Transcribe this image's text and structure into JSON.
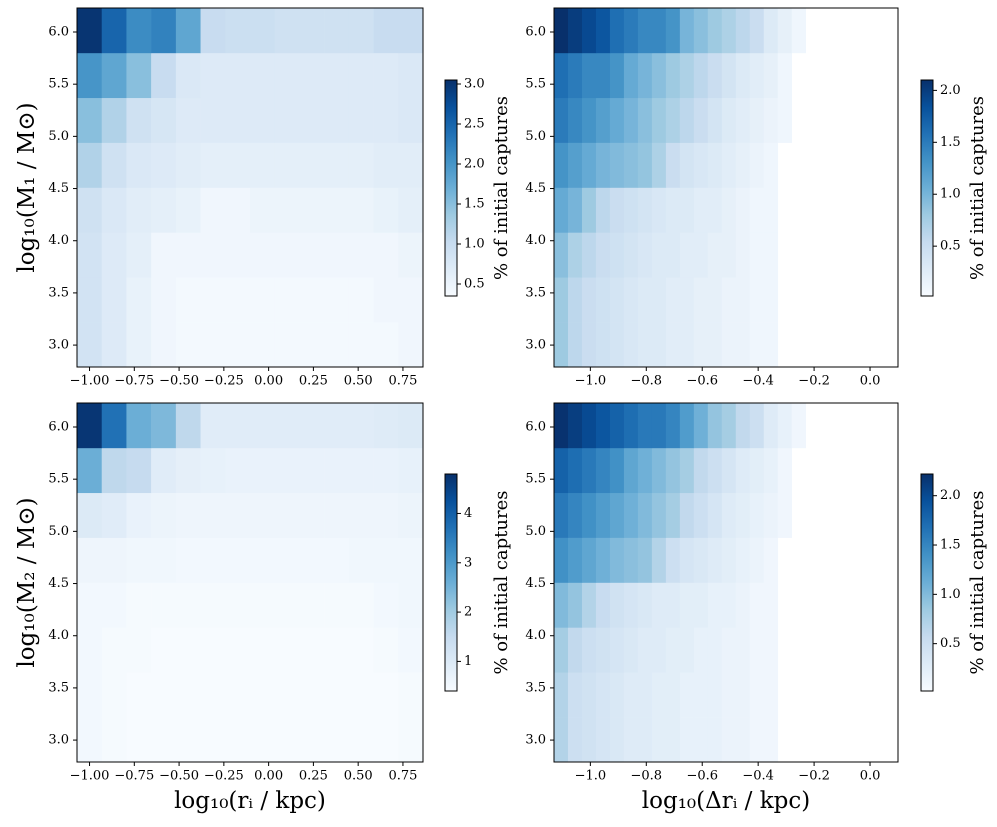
{
  "chart_data": [
    {
      "type": "heatmap",
      "ylabel": "log₁₀(M₁ / M⊙)",
      "xlim": [
        -1.07,
        0.862
      ],
      "ylim": [
        2.79,
        6.23
      ],
      "xticks": [
        {
          "value": -1,
          "label": "−1.00"
        },
        {
          "value": -0.75,
          "label": "−0.75"
        },
        {
          "value": -0.5,
          "label": "−0.50"
        },
        {
          "value": -0.25,
          "label": "−0.25"
        },
        {
          "value": 0,
          "label": "0.00"
        },
        {
          "value": 0.25,
          "label": "0.25"
        },
        {
          "value": 0.5,
          "label": "0.50"
        },
        {
          "value": 0.75,
          "label": "0.75"
        }
      ],
      "yticks": [
        {
          "value": 3,
          "label": "3.0"
        },
        {
          "value": 3.5,
          "label": "3.5"
        },
        {
          "value": 4,
          "label": "4.0"
        },
        {
          "value": 4.5,
          "label": "4.5"
        },
        {
          "value": 5,
          "label": "5.0"
        },
        {
          "value": 5.5,
          "label": "5.5"
        },
        {
          "value": 6,
          "label": "6.0"
        }
      ],
      "x_edges": [
        -1.07,
        -0.932,
        -0.794,
        -0.656,
        -0.518,
        -0.38,
        -0.242,
        -0.104,
        0.034,
        0.172,
        0.31,
        0.448,
        0.586,
        0.724,
        0.862
      ],
      "y_edges": [
        2.79,
        3.22,
        3.65,
        4.08,
        4.51,
        4.94,
        5.37,
        5.8,
        6.23
      ],
      "z": [
        [
          0.85,
          0.7,
          0.55,
          0.45,
          0.4,
          0.4,
          0.4,
          0.4,
          0.4,
          0.4,
          0.4,
          0.4,
          0.4,
          0.45
        ],
        [
          0.85,
          0.7,
          0.55,
          0.45,
          0.4,
          0.4,
          0.4,
          0.4,
          0.4,
          0.4,
          0.4,
          0.4,
          0.45,
          0.45
        ],
        [
          0.85,
          0.7,
          0.6,
          0.45,
          0.45,
          0.45,
          0.45,
          0.45,
          0.45,
          0.45,
          0.45,
          0.45,
          0.45,
          0.5
        ],
        [
          0.9,
          0.75,
          0.65,
          0.6,
          0.55,
          0.45,
          0.45,
          0.5,
          0.5,
          0.5,
          0.5,
          0.5,
          0.55,
          0.6
        ],
        [
          1.2,
          0.9,
          0.75,
          0.7,
          0.65,
          0.6,
          0.6,
          0.6,
          0.6,
          0.6,
          0.6,
          0.6,
          0.65,
          0.65
        ],
        [
          1.5,
          1.2,
          0.9,
          0.8,
          0.7,
          0.7,
          0.7,
          0.7,
          0.7,
          0.7,
          0.7,
          0.7,
          0.7,
          0.75
        ],
        [
          2.0,
          1.8,
          1.5,
          1.0,
          0.75,
          0.7,
          0.7,
          0.7,
          0.7,
          0.7,
          0.7,
          0.7,
          0.7,
          0.75
        ],
        [
          3.0,
          2.5,
          2.1,
          2.2,
          1.8,
          1.0,
          0.95,
          0.95,
          0.9,
          0.9,
          0.9,
          0.9,
          1.0,
          1.0
        ]
      ],
      "colorbar": {
        "label": "% of initial captures",
        "lim": [
          0.35,
          3.05
        ],
        "ticks": [
          {
            "value": 0.5,
            "label": "0.5"
          },
          {
            "value": 1,
            "label": "1.0"
          },
          {
            "value": 1.5,
            "label": "1.5"
          },
          {
            "value": 2,
            "label": "2.0"
          },
          {
            "value": 2.5,
            "label": "2.5"
          },
          {
            "value": 3,
            "label": "3.0"
          }
        ]
      }
    },
    {
      "type": "heatmap",
      "xlim": [
        -1.13,
        0.1
      ],
      "ylim": [
        2.79,
        6.23
      ],
      "xticks": [
        {
          "value": -1,
          "label": "−1.0"
        },
        {
          "value": -0.8,
          "label": "−0.8"
        },
        {
          "value": -0.6,
          "label": "−0.6"
        },
        {
          "value": -0.4,
          "label": "−0.4"
        },
        {
          "value": -0.2,
          "label": "−0.2"
        },
        {
          "value": 0,
          "label": "0.0"
        }
      ],
      "yticks": [
        {
          "value": 3,
          "label": "3.0"
        },
        {
          "value": 3.5,
          "label": "3.5"
        },
        {
          "value": 4,
          "label": "4.0"
        },
        {
          "value": 4.5,
          "label": "4.5"
        },
        {
          "value": 5,
          "label": "5.0"
        },
        {
          "value": 5.5,
          "label": "5.5"
        },
        {
          "value": 6,
          "label": "6.0"
        }
      ],
      "x_edges": [
        -1.13,
        -1.08,
        -1.03,
        -0.98,
        -0.93,
        -0.88,
        -0.83,
        -0.78,
        -0.73,
        -0.68,
        -0.63,
        -0.58,
        -0.53,
        -0.48,
        -0.43,
        -0.38,
        -0.33,
        -0.28,
        -0.23,
        -0.18,
        -0.13,
        -0.08,
        -0.03,
        0.02,
        0.07
      ],
      "y_edges": [
        2.79,
        3.22,
        3.65,
        4.08,
        4.51,
        4.94,
        5.37,
        5.8,
        6.23
      ],
      "z": [
        [
          0.8,
          0.6,
          0.5,
          0.45,
          0.4,
          0.35,
          0.3,
          0.3,
          0.25,
          0.25,
          0.2,
          0.2,
          0.15,
          0.15,
          0.1,
          0.1,
          null,
          null,
          null,
          null,
          null,
          null,
          null,
          null
        ],
        [
          0.8,
          0.6,
          0.5,
          0.45,
          0.4,
          0.35,
          0.3,
          0.3,
          0.25,
          0.25,
          0.2,
          0.2,
          0.15,
          0.15,
          0.1,
          0.1,
          null,
          null,
          null,
          null,
          null,
          null,
          null,
          null
        ],
        [
          0.9,
          0.7,
          0.6,
          0.5,
          0.45,
          0.4,
          0.35,
          0.3,
          0.3,
          0.25,
          0.25,
          0.2,
          0.2,
          0.15,
          0.1,
          0.1,
          null,
          null,
          null,
          null,
          null,
          null,
          null,
          null
        ],
        [
          1.1,
          1.0,
          0.8,
          0.6,
          0.5,
          0.45,
          0.4,
          0.35,
          0.3,
          0.3,
          0.25,
          0.25,
          0.2,
          0.15,
          0.1,
          0.1,
          null,
          null,
          null,
          null,
          null,
          null,
          null,
          null
        ],
        [
          1.3,
          1.2,
          1.1,
          1.0,
          0.95,
          0.9,
          0.85,
          0.7,
          0.5,
          0.4,
          0.35,
          0.3,
          0.25,
          0.2,
          0.15,
          0.1,
          null,
          null,
          null,
          null,
          null,
          null,
          null,
          null
        ],
        [
          1.5,
          1.4,
          1.3,
          1.2,
          1.1,
          1.0,
          0.9,
          0.8,
          0.7,
          0.6,
          0.5,
          0.4,
          0.3,
          0.25,
          0.2,
          0.15,
          0.1,
          null,
          null,
          null,
          null,
          null,
          null,
          null
        ],
        [
          1.6,
          1.5,
          1.4,
          1.4,
          1.3,
          1.1,
          1.0,
          0.9,
          0.8,
          0.7,
          0.6,
          0.5,
          0.4,
          0.3,
          0.25,
          0.2,
          0.1,
          null,
          null,
          null,
          null,
          null,
          null,
          null
        ],
        [
          2.1,
          2.0,
          1.9,
          1.8,
          1.6,
          1.5,
          1.4,
          1.4,
          1.3,
          1.0,
          0.9,
          0.8,
          0.7,
          0.6,
          0.5,
          0.3,
          0.2,
          0.1,
          null,
          null,
          null,
          null,
          null,
          null
        ]
      ],
      "colorbar": {
        "label": "% of initial captures",
        "lim": [
          0.02,
          2.1
        ],
        "ticks": [
          {
            "value": 0.5,
            "label": "0.5"
          },
          {
            "value": 1,
            "label": "1.0"
          },
          {
            "value": 1.5,
            "label": "1.5"
          },
          {
            "value": 2,
            "label": "2.0"
          }
        ]
      }
    },
    {
      "type": "heatmap",
      "ylabel": "log₁₀(M₂ / M⊙)",
      "xlabel": "log₁₀(rᵢ / kpc)",
      "xlim": [
        -1.07,
        0.862
      ],
      "ylim": [
        2.79,
        6.23
      ],
      "xticks": [
        {
          "value": -1,
          "label": "−1.00"
        },
        {
          "value": -0.75,
          "label": "−0.75"
        },
        {
          "value": -0.5,
          "label": "−0.50"
        },
        {
          "value": -0.25,
          "label": "−0.25"
        },
        {
          "value": 0,
          "label": "0.00"
        },
        {
          "value": 0.25,
          "label": "0.25"
        },
        {
          "value": 0.5,
          "label": "0.50"
        },
        {
          "value": 0.75,
          "label": "0.75"
        }
      ],
      "yticks": [
        {
          "value": 3,
          "label": "3.0"
        },
        {
          "value": 3.5,
          "label": "3.5"
        },
        {
          "value": 4,
          "label": "4.0"
        },
        {
          "value": 4.5,
          "label": "4.5"
        },
        {
          "value": 5,
          "label": "5.0"
        },
        {
          "value": 5.5,
          "label": "5.5"
        },
        {
          "value": 6,
          "label": "6.0"
        }
      ],
      "x_edges": [
        -1.07,
        -0.932,
        -0.794,
        -0.656,
        -0.518,
        -0.38,
        -0.242,
        -0.104,
        0.034,
        0.172,
        0.31,
        0.448,
        0.586,
        0.724,
        0.862
      ],
      "y_edges": [
        2.79,
        3.22,
        3.65,
        4.08,
        4.51,
        4.94,
        5.37,
        5.8,
        6.23
      ],
      "z": [
        [
          0.5,
          0.45,
          0.4,
          0.4,
          0.4,
          0.4,
          0.4,
          0.4,
          0.4,
          0.4,
          0.4,
          0.4,
          0.4,
          0.45
        ],
        [
          0.5,
          0.45,
          0.4,
          0.4,
          0.4,
          0.4,
          0.4,
          0.4,
          0.4,
          0.4,
          0.4,
          0.4,
          0.4,
          0.45
        ],
        [
          0.5,
          0.45,
          0.45,
          0.4,
          0.4,
          0.4,
          0.4,
          0.4,
          0.4,
          0.4,
          0.4,
          0.4,
          0.45,
          0.5
        ],
        [
          0.5,
          0.5,
          0.45,
          0.45,
          0.45,
          0.45,
          0.45,
          0.45,
          0.45,
          0.45,
          0.45,
          0.45,
          0.5,
          0.55
        ],
        [
          0.6,
          0.6,
          0.55,
          0.55,
          0.5,
          0.5,
          0.5,
          0.5,
          0.5,
          0.5,
          0.5,
          0.55,
          0.55,
          0.55
        ],
        [
          1.0,
          0.9,
          0.7,
          0.65,
          0.6,
          0.6,
          0.6,
          0.6,
          0.6,
          0.6,
          0.6,
          0.6,
          0.6,
          0.65
        ],
        [
          2.6,
          1.6,
          1.5,
          0.9,
          0.8,
          0.75,
          0.7,
          0.7,
          0.7,
          0.7,
          0.7,
          0.7,
          0.7,
          0.75
        ],
        [
          4.7,
          3.7,
          2.6,
          2.4,
          1.6,
          0.9,
          0.9,
          0.9,
          0.9,
          0.9,
          0.9,
          0.9,
          0.95,
          1.0
        ]
      ],
      "colorbar": {
        "label": "% of initial captures",
        "lim": [
          0.4,
          4.8
        ],
        "ticks": [
          1,
          2,
          3,
          4
        ]
      }
    },
    {
      "type": "heatmap",
      "xlabel": "log₁₀(Δrᵢ / kpc)",
      "xlim": [
        -1.13,
        0.1
      ],
      "ylim": [
        2.79,
        6.23
      ],
      "xticks": [
        {
          "value": -1,
          "label": "−1.0"
        },
        {
          "value": -0.8,
          "label": "−0.8"
        },
        {
          "value": -0.6,
          "label": "−0.6"
        },
        {
          "value": -0.4,
          "label": "−0.4"
        },
        {
          "value": -0.2,
          "label": "−0.2"
        },
        {
          "value": 0,
          "label": "0.0"
        }
      ],
      "yticks": [
        {
          "value": 3,
          "label": "3.0"
        },
        {
          "value": 3.5,
          "label": "3.5"
        },
        {
          "value": 4,
          "label": "4.0"
        },
        {
          "value": 4.5,
          "label": "4.5"
        },
        {
          "value": 5,
          "label": "5.0"
        },
        {
          "value": 5.5,
          "label": "5.5"
        },
        {
          "value": 6,
          "label": "6.0"
        }
      ],
      "x_edges": [
        -1.13,
        -1.08,
        -1.03,
        -0.98,
        -0.93,
        -0.88,
        -0.83,
        -0.78,
        -0.73,
        -0.68,
        -0.63,
        -0.58,
        -0.53,
        -0.48,
        -0.43,
        -0.38,
        -0.33,
        -0.28,
        -0.23,
        -0.18,
        -0.13,
        -0.08,
        -0.03,
        0.02,
        0.07
      ],
      "y_edges": [
        2.79,
        3.22,
        3.65,
        4.08,
        4.51,
        4.94,
        5.37,
        5.8,
        6.23
      ],
      "z": [
        [
          0.7,
          0.5,
          0.45,
          0.4,
          0.35,
          0.3,
          0.3,
          0.25,
          0.25,
          0.2,
          0.2,
          0.2,
          0.15,
          0.15,
          0.1,
          0.1,
          null,
          null,
          null,
          null,
          null,
          null,
          null,
          null
        ],
        [
          0.7,
          0.5,
          0.45,
          0.4,
          0.35,
          0.3,
          0.3,
          0.25,
          0.25,
          0.2,
          0.2,
          0.2,
          0.15,
          0.15,
          0.1,
          0.1,
          null,
          null,
          null,
          null,
          null,
          null,
          null,
          null
        ],
        [
          0.8,
          0.6,
          0.5,
          0.45,
          0.4,
          0.35,
          0.3,
          0.3,
          0.25,
          0.25,
          0.2,
          0.2,
          0.15,
          0.15,
          0.1,
          0.1,
          null,
          null,
          null,
          null,
          null,
          null,
          null,
          null
        ],
        [
          1.0,
          0.9,
          0.7,
          0.55,
          0.45,
          0.4,
          0.35,
          0.3,
          0.3,
          0.25,
          0.25,
          0.2,
          0.2,
          0.15,
          0.1,
          0.1,
          null,
          null,
          null,
          null,
          null,
          null,
          null,
          null
        ],
        [
          1.4,
          1.3,
          1.2,
          1.1,
          1.0,
          0.95,
          0.9,
          0.7,
          0.5,
          0.4,
          0.35,
          0.3,
          0.25,
          0.2,
          0.15,
          0.1,
          null,
          null,
          null,
          null,
          null,
          null,
          null,
          null
        ],
        [
          1.6,
          1.5,
          1.4,
          1.3,
          1.2,
          1.1,
          1.0,
          0.9,
          0.8,
          0.6,
          0.5,
          0.4,
          0.3,
          0.25,
          0.2,
          0.15,
          0.1,
          null,
          null,
          null,
          null,
          null,
          null,
          null
        ],
        [
          1.8,
          1.7,
          1.6,
          1.5,
          1.4,
          1.2,
          1.1,
          1.0,
          0.9,
          0.8,
          0.6,
          0.5,
          0.4,
          0.3,
          0.25,
          0.2,
          0.1,
          null,
          null,
          null,
          null,
          null,
          null,
          null
        ],
        [
          2.2,
          2.1,
          2.0,
          1.9,
          1.8,
          1.7,
          1.6,
          1.6,
          1.5,
          1.3,
          1.1,
          0.9,
          0.8,
          0.6,
          0.5,
          0.3,
          0.2,
          0.1,
          null,
          null,
          null,
          null,
          null,
          null
        ]
      ],
      "colorbar": {
        "label": "% of initial captures",
        "lim": [
          0.02,
          2.22
        ],
        "ticks": [
          {
            "value": 0.5,
            "label": "0.5"
          },
          {
            "value": 1,
            "label": "1.0"
          },
          {
            "value": 1.5,
            "label": "1.5"
          },
          {
            "value": 2,
            "label": "2.0"
          }
        ]
      }
    }
  ]
}
